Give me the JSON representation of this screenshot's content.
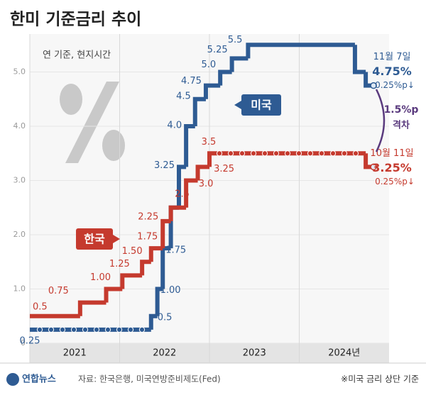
{
  "chart_data": {
    "type": "step",
    "title": "한미 기준금리 추이",
    "subtitle": "연 기준, 현지시간",
    "source": "자료: 한국은행, 미국연방준비제도(Fed)",
    "note": "※미국 금리 상단 기준",
    "logo": "연합뉴스",
    "xlim": [
      2021,
      2025
    ],
    "xticks": [
      2021,
      2022,
      2023,
      {
        "value": 2024,
        "label": "2024년"
      }
    ],
    "ylim": [
      0,
      5.7
    ],
    "yticks": [
      0,
      {
        "value": 1,
        "label": "1.0"
      },
      {
        "value": 2,
        "label": "2.0"
      },
      {
        "value": 3,
        "label": "3.0"
      },
      {
        "value": 4,
        "label": "4.0"
      },
      {
        "value": 5,
        "label": "5.0"
      }
    ],
    "grid": true,
    "gap_label": "1.5%p",
    "gap_note": "격차",
    "gap_color": "#5a3a7e",
    "series": [
      {
        "name": "미국",
        "color": "#2e5b93",
        "x": [
          2021.0,
          2022.35,
          2022.42,
          2022.48,
          2022.57,
          2022.66,
          2022.74,
          2022.84,
          2022.96,
          2023.12,
          2023.25,
          2023.43,
          2024.62,
          2024.74
        ],
        "values": [
          0.25,
          0.5,
          1.0,
          1.75,
          2.5,
          3.25,
          4.0,
          4.5,
          4.75,
          5.0,
          5.25,
          5.5,
          5.0,
          4.75
        ],
        "value_labels": [
          "0.25",
          "0.5",
          "1.00",
          "1.75",
          null,
          "3.25",
          "4.0",
          "4.5",
          "4.75",
          "5.0",
          "5.25",
          "5.5",
          null,
          "4.75%"
        ],
        "last_date": "11월 7일",
        "last_change": "0.25%p↓"
      },
      {
        "name": "한국",
        "color": "#c53a2e",
        "x": [
          2021.0,
          2021.56,
          2021.85,
          2022.03,
          2022.25,
          2022.35,
          2022.48,
          2022.57,
          2022.74,
          2022.87,
          2023.0,
          2024.74
        ],
        "values": [
          0.5,
          0.75,
          1.0,
          1.25,
          1.5,
          1.75,
          2.25,
          2.5,
          3.0,
          3.25,
          3.5,
          3.25
        ],
        "value_labels": [
          "0.5",
          "0.75",
          "1.00",
          "1.25",
          "1.50",
          "1.75",
          "2.25",
          "2.5",
          "3.0",
          "3.25",
          "3.5",
          "3.25%"
        ],
        "last_date": "10월 11일",
        "last_change": "0.25%p↓"
      }
    ]
  }
}
